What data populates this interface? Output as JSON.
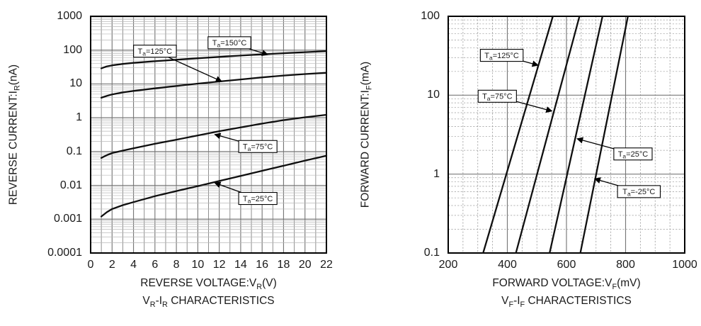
{
  "figure": {
    "background": "#ffffff",
    "text_color": "#1a1a1a",
    "curve_color": "#0f0f0f",
    "grid_major_color": "#787878",
    "grid_minor_color": "#b0b0b0",
    "callout_fill": "#ffffff",
    "callout_border": "#000000"
  },
  "chart_data": [
    {
      "id": "vr-ir",
      "type": "line",
      "title_text": "VR-IR CHARACTERISTICS",
      "title": [
        {
          "t": "V"
        },
        {
          "t": "R",
          "sub": true
        },
        {
          "t": "-I"
        },
        {
          "t": "R",
          "sub": true
        },
        {
          "t": " CHARACTERISTICS"
        }
      ],
      "xlabel_text": "REVERSE VOLTAGE:VR(V)",
      "xlabel": [
        {
          "t": "REVERSE VOLTAGE:V"
        },
        {
          "t": "R",
          "sub": true
        },
        {
          "t": "(V)"
        }
      ],
      "ylabel_text": "REVERSE CURRENT:IR(nA)",
      "ylabel": [
        {
          "t": "REVERSE CURRENT:I"
        },
        {
          "t": "R",
          "sub": true
        },
        {
          "t": "(nA)"
        }
      ],
      "x_axis": {
        "scale": "linear",
        "min": 0,
        "max": 22,
        "major_step": 2,
        "minor_step": 1,
        "tick_labels": [
          "0",
          "2",
          "4",
          "6",
          "8",
          "10",
          "12",
          "14",
          "16",
          "18",
          "20",
          "22"
        ]
      },
      "y_axis": {
        "scale": "log",
        "min": 0.0001,
        "max": 1000,
        "tick_labels": [
          "1000",
          "100",
          "10",
          "1",
          "0.1",
          "0.01",
          "0.001",
          "0.0001"
        ]
      },
      "grid": true,
      "series": [
        {
          "name": "Ta=150°C",
          "points": [
            [
              1,
              29
            ],
            [
              1.5,
              33
            ],
            [
              2,
              35.5
            ],
            [
              3,
              39
            ],
            [
              4,
              42
            ],
            [
              6,
              47
            ],
            [
              8,
              52
            ],
            [
              10,
              57.5
            ],
            [
              12,
              63
            ],
            [
              14,
              69
            ],
            [
              16,
              75
            ],
            [
              18,
              81
            ],
            [
              20,
              87
            ],
            [
              22,
              93
            ]
          ]
        },
        {
          "name": "Ta=125°C",
          "points": [
            [
              1,
              3.9
            ],
            [
              1.5,
              4.4
            ],
            [
              2,
              4.9
            ],
            [
              3,
              5.6
            ],
            [
              4,
              6.2
            ],
            [
              6,
              7.4
            ],
            [
              8,
              8.7
            ],
            [
              10,
              10.2
            ],
            [
              12,
              11.8
            ],
            [
              14,
              13.6
            ],
            [
              16,
              15.6
            ],
            [
              18,
              17.7
            ],
            [
              20,
              19.6
            ],
            [
              22,
              21.4
            ]
          ]
        },
        {
          "name": "Ta=75°C",
          "points": [
            [
              1,
              0.065
            ],
            [
              1.5,
              0.078
            ],
            [
              2,
              0.09
            ],
            [
              3,
              0.107
            ],
            [
              4,
              0.125
            ],
            [
              6,
              0.17
            ],
            [
              8,
              0.225
            ],
            [
              10,
              0.3
            ],
            [
              12,
              0.4
            ],
            [
              14,
              0.52
            ],
            [
              16,
              0.67
            ],
            [
              18,
              0.85
            ],
            [
              20,
              1.03
            ],
            [
              22,
              1.22
            ]
          ]
        },
        {
          "name": "Ta=25°C",
          "points": [
            [
              1,
              0.0012
            ],
            [
              1.5,
              0.0016
            ],
            [
              2,
              0.002
            ],
            [
              3,
              0.0026
            ],
            [
              4,
              0.0032
            ],
            [
              6,
              0.0048
            ],
            [
              8,
              0.0068
            ],
            [
              10,
              0.0095
            ],
            [
              12,
              0.0135
            ],
            [
              14,
              0.019
            ],
            [
              16,
              0.027
            ],
            [
              18,
              0.038
            ],
            [
              20,
              0.054
            ],
            [
              22,
              0.075
            ]
          ]
        }
      ],
      "annotations": [
        {
          "label_text": "Ta=125°C",
          "label": [
            {
              "t": "T"
            },
            {
              "t": "a",
              "sub": true
            },
            {
              "t": "=125°C"
            }
          ],
          "box_at": [
            6.0,
            93
          ],
          "arrow_to": [
            12.2,
            12
          ]
        },
        {
          "label_text": "Ta=150°C",
          "label": [
            {
              "t": "T"
            },
            {
              "t": "a",
              "sub": true
            },
            {
              "t": "=150°C"
            }
          ],
          "box_at": [
            12.95,
            165
          ],
          "arrow_to": [
            16.5,
            74
          ]
        },
        {
          "label_text": "Ta=75°C",
          "label": [
            {
              "t": "T"
            },
            {
              "t": "a",
              "sub": true
            },
            {
              "t": "=75°C"
            }
          ],
          "box_at": [
            15.6,
            0.141
          ],
          "arrow_to": [
            11.6,
            0.32
          ]
        },
        {
          "label_text": "Ta=25°C",
          "label": [
            {
              "t": "T"
            },
            {
              "t": "a",
              "sub": true
            },
            {
              "t": "=25°C"
            }
          ],
          "box_at": [
            15.6,
            0.0041
          ],
          "arrow_to": [
            11.6,
            0.0118
          ]
        }
      ]
    },
    {
      "id": "vf-if",
      "type": "line",
      "title_text": "VF-IF CHARACTERISTICS",
      "title": [
        {
          "t": "V"
        },
        {
          "t": "F",
          "sub": true
        },
        {
          "t": "-I"
        },
        {
          "t": "F",
          "sub": true
        },
        {
          "t": " CHARACTERISTICS"
        }
      ],
      "xlabel_text": "FORWARD VOLTAGE:VF(mV)",
      "xlabel": [
        {
          "t": "FORWARD VOLTAGE:V"
        },
        {
          "t": "F",
          "sub": true
        },
        {
          "t": "(mV)"
        }
      ],
      "ylabel_text": "FORWARD CURRENT:IF(mA)",
      "ylabel": [
        {
          "t": "FORWARD CURRENT:I"
        },
        {
          "t": "F",
          "sub": true
        },
        {
          "t": "(mA)"
        }
      ],
      "x_axis": {
        "scale": "linear",
        "min": 200,
        "max": 1000,
        "major_step": 200,
        "minor_step": 50,
        "tick_labels": [
          "200",
          "400",
          "600",
          "800",
          "1000"
        ]
      },
      "y_axis": {
        "scale": "log",
        "min": 0.1,
        "max": 100,
        "tick_labels": [
          "100",
          "10",
          "1",
          "0.1"
        ]
      },
      "grid": true,
      "series": [
        {
          "name": "Ta=125°C",
          "points": [
            [
              318,
              0.1
            ],
            [
              554,
              100
            ]
          ]
        },
        {
          "name": "Ta=75°C",
          "points": [
            [
              429,
              0.1
            ],
            [
              644,
              100
            ]
          ]
        },
        {
          "name": "Ta=25°C",
          "points": [
            [
              543,
              0.1
            ],
            [
              722,
              100
            ]
          ]
        },
        {
          "name": "Ta=-25°C",
          "points": [
            [
              647,
              0.1
            ],
            [
              808,
              100
            ]
          ]
        }
      ],
      "annotations": [
        {
          "label_text": "Ta=125°C",
          "label": [
            {
              "t": "T"
            },
            {
              "t": "a",
              "sub": true
            },
            {
              "t": "=125°C"
            }
          ],
          "box_at": [
            381,
            32
          ],
          "arrow_to": [
            503,
            24
          ]
        },
        {
          "label_text": "Ta=75°C",
          "label": [
            {
              "t": "T"
            },
            {
              "t": "a",
              "sub": true
            },
            {
              "t": "=75°C"
            }
          ],
          "box_at": [
            366,
            9.7
          ],
          "arrow_to": [
            550,
            6.3
          ]
        },
        {
          "label_text": "Ta=25°C",
          "label": [
            {
              "t": "T"
            },
            {
              "t": "a",
              "sub": true
            },
            {
              "t": "=25°C"
            }
          ],
          "box_at": [
            825,
            1.8
          ],
          "arrow_to": [
            637,
            2.8
          ]
        },
        {
          "label_text": "Ta=-25°C",
          "label": [
            {
              "t": "T"
            },
            {
              "t": "a",
              "sub": true
            },
            {
              "t": "=-25°C"
            }
          ],
          "box_at": [
            845,
            0.6
          ],
          "arrow_to": [
            696,
            0.87
          ]
        }
      ]
    }
  ]
}
